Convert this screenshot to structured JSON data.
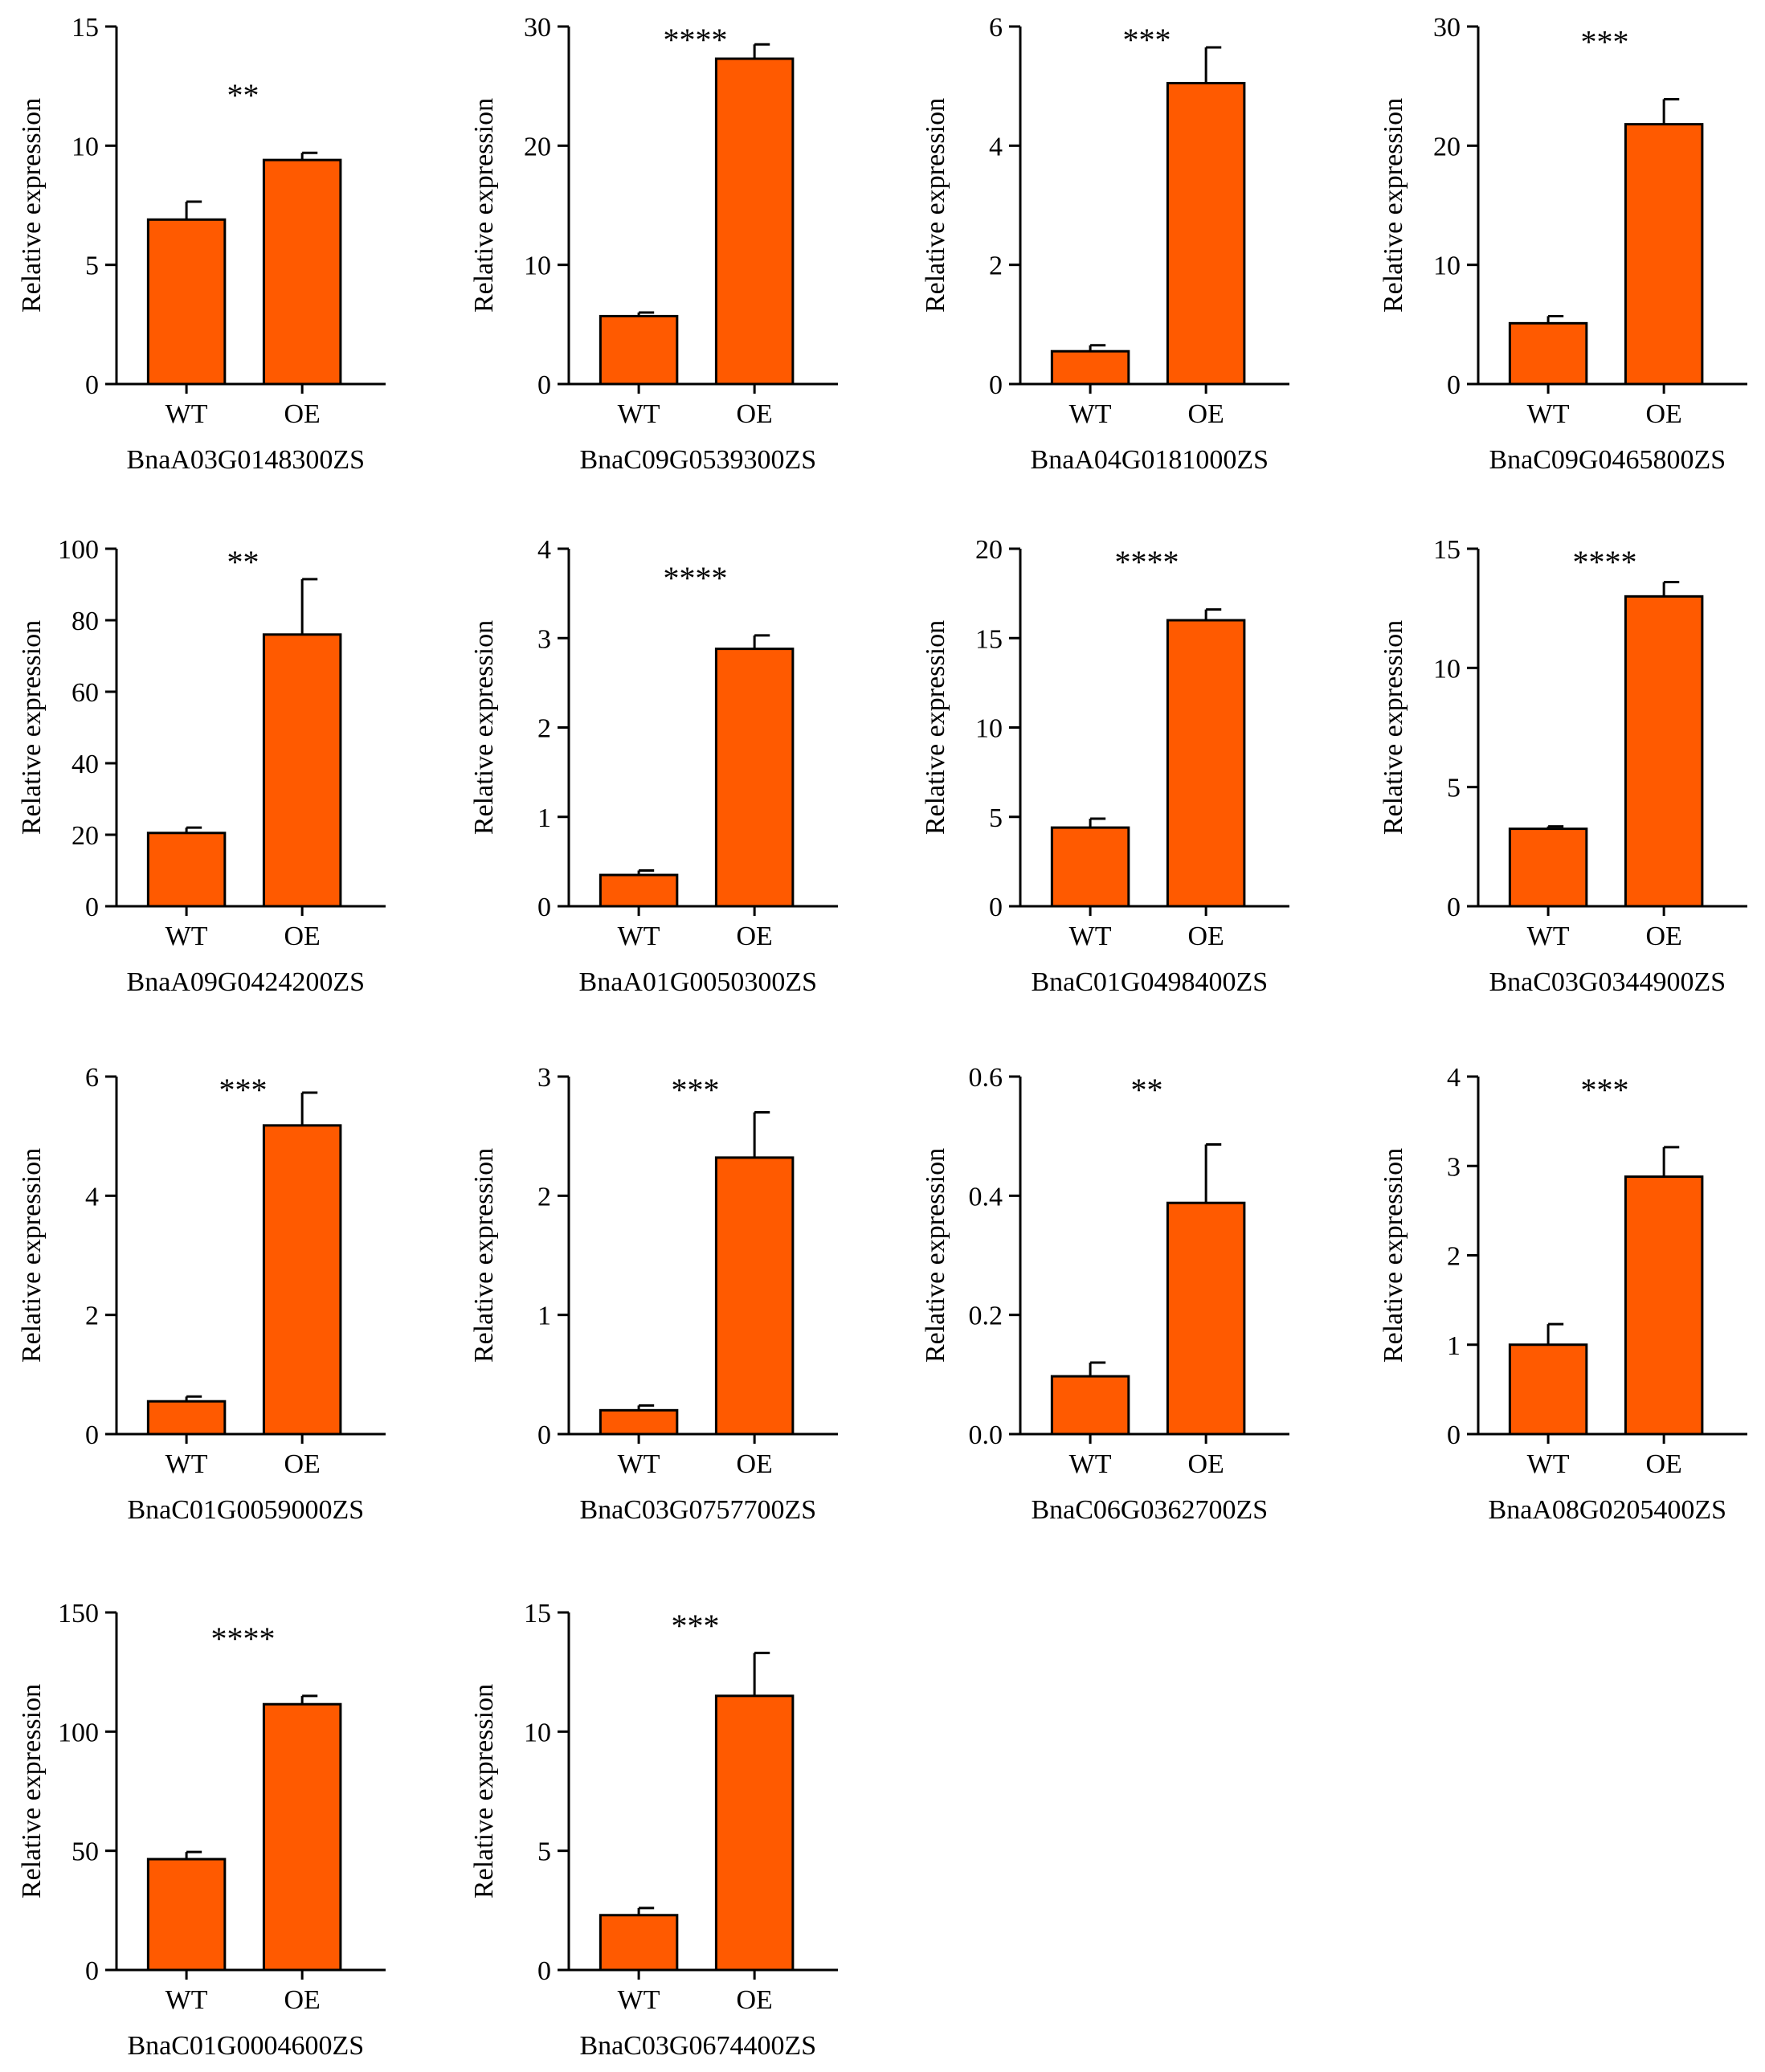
{
  "figure": {
    "bar_color": "#FF5A00",
    "axis_color": "#000000",
    "ylabel": "Relative expression"
  },
  "chart_data": [
    {
      "type": "bar",
      "title": "BnaA03G0148300ZS",
      "xlabel": "BnaA03G0148300ZS",
      "ylabel": "Relative expression",
      "categories": [
        "WT",
        "OE"
      ],
      "values": [
        6.9,
        9.4
      ],
      "errors": [
        0.75,
        0.3
      ],
      "ylim": [
        0,
        15
      ],
      "yticks": [
        "0",
        "5",
        "10",
        "15"
      ],
      "significance": "**"
    },
    {
      "type": "bar",
      "title": "BnaC09G0539300ZS",
      "xlabel": "BnaC09G0539300ZS",
      "ylabel": "Relative expression",
      "categories": [
        "WT",
        "OE"
      ],
      "values": [
        5.7,
        27.3
      ],
      "errors": [
        0.3,
        1.2
      ],
      "ylim": [
        0,
        30
      ],
      "yticks": [
        "0",
        "10",
        "20",
        "30"
      ],
      "significance": "****"
    },
    {
      "type": "bar",
      "title": "BnaA04G0181000ZS",
      "xlabel": "BnaA04G0181000ZS",
      "ylabel": "Relative expression",
      "categories": [
        "WT",
        "OE"
      ],
      "values": [
        0.55,
        5.05
      ],
      "errors": [
        0.1,
        0.6
      ],
      "ylim": [
        0,
        6
      ],
      "yticks": [
        "0",
        "2",
        "4",
        "6"
      ],
      "significance": "***"
    },
    {
      "type": "bar",
      "title": "BnaC09G0465800ZS",
      "xlabel": "BnaC09G0465800ZS",
      "ylabel": "Relative expression",
      "categories": [
        "WT",
        "OE"
      ],
      "values": [
        5.1,
        21.8
      ],
      "errors": [
        0.6,
        2.1
      ],
      "ylim": [
        0,
        30
      ],
      "yticks": [
        "0",
        "10",
        "20",
        "30"
      ],
      "significance": "***"
    },
    {
      "type": "bar",
      "title": "BnaA09G0424200ZS",
      "xlabel": "BnaA09G0424200ZS",
      "ylabel": "Relative expression",
      "categories": [
        "WT",
        "OE"
      ],
      "values": [
        20.5,
        76
      ],
      "errors": [
        1.5,
        15.5
      ],
      "ylim": [
        0,
        100
      ],
      "yticks": [
        "0",
        "20",
        "40",
        "60",
        "80",
        "100"
      ],
      "significance": "**"
    },
    {
      "type": "bar",
      "title": "BnaA01G0050300ZS",
      "xlabel": "BnaA01G0050300ZS",
      "ylabel": "Relative expression",
      "categories": [
        "WT",
        "OE"
      ],
      "values": [
        0.35,
        2.88
      ],
      "errors": [
        0.05,
        0.15
      ],
      "ylim": [
        0,
        4
      ],
      "yticks": [
        "0",
        "1",
        "2",
        "3",
        "4"
      ],
      "significance": "****"
    },
    {
      "type": "bar",
      "title": "BnaC01G0498400ZS",
      "xlabel": "BnaC01G0498400ZS",
      "ylabel": "Relative expression",
      "categories": [
        "WT",
        "OE"
      ],
      "values": [
        4.4,
        16
      ],
      "errors": [
        0.5,
        0.6
      ],
      "ylim": [
        0,
        20
      ],
      "yticks": [
        "0",
        "5",
        "10",
        "15",
        "20"
      ],
      "significance": "****"
    },
    {
      "type": "bar",
      "title": "BnaC03G0344900ZS",
      "xlabel": "BnaC03G0344900ZS",
      "ylabel": "Relative expression",
      "categories": [
        "WT",
        "OE"
      ],
      "values": [
        3.25,
        13
      ],
      "errors": [
        0.1,
        0.6
      ],
      "ylim": [
        0,
        15
      ],
      "yticks": [
        "0",
        "5",
        "10",
        "15"
      ],
      "significance": "****"
    },
    {
      "type": "bar",
      "title": "BnaC01G0059000ZS",
      "xlabel": "BnaC01G0059000ZS",
      "ylabel": "Relative expression",
      "categories": [
        "WT",
        "OE"
      ],
      "values": [
        0.55,
        5.18
      ],
      "errors": [
        0.08,
        0.55
      ],
      "ylim": [
        0,
        6
      ],
      "yticks": [
        "0",
        "2",
        "4",
        "6"
      ],
      "significance": "***"
    },
    {
      "type": "bar",
      "title": "BnaC03G0757700ZS",
      "xlabel": "BnaC03G0757700ZS",
      "ylabel": "Relative expression",
      "categories": [
        "WT",
        "OE"
      ],
      "values": [
        0.2,
        2.32
      ],
      "errors": [
        0.04,
        0.38
      ],
      "ylim": [
        0,
        3
      ],
      "yticks": [
        "0",
        "1",
        "2",
        "3"
      ],
      "significance": "***"
    },
    {
      "type": "bar",
      "title": "BnaC06G0362700ZS",
      "xlabel": "BnaC06G0362700ZS",
      "ylabel": "Relative expression",
      "categories": [
        "WT",
        "OE"
      ],
      "values": [
        0.097,
        0.388
      ],
      "errors": [
        0.023,
        0.098
      ],
      "ylim": [
        0,
        0.6
      ],
      "yticks": [
        "0.0",
        "0.2",
        "0.4",
        "0.6"
      ],
      "significance": "**"
    },
    {
      "type": "bar",
      "title": "BnaA08G0205400ZS",
      "xlabel": "BnaA08G0205400ZS",
      "ylabel": "Relative expression",
      "categories": [
        "WT",
        "OE"
      ],
      "values": [
        1.0,
        2.88
      ],
      "errors": [
        0.23,
        0.33
      ],
      "ylim": [
        0,
        4
      ],
      "yticks": [
        "0",
        "1",
        "2",
        "3",
        "4"
      ],
      "significance": "***"
    },
    {
      "type": "bar",
      "title": "BnaC01G0004600ZS",
      "xlabel": "BnaC01G0004600ZS",
      "ylabel": "Relative expression",
      "categories": [
        "WT",
        "OE"
      ],
      "values": [
        46.5,
        111.5
      ],
      "errors": [
        3,
        3.5
      ],
      "ylim": [
        0,
        150
      ],
      "yticks": [
        "0",
        "50",
        "100",
        "150"
      ],
      "significance": "****"
    },
    {
      "type": "bar",
      "title": "BnaC03G0674400ZS",
      "xlabel": "BnaC03G0674400ZS",
      "ylabel": "Relative expression",
      "categories": [
        "WT",
        "OE"
      ],
      "values": [
        2.3,
        11.5
      ],
      "errors": [
        0.3,
        1.8
      ],
      "ylim": [
        0,
        15
      ],
      "yticks": [
        "0",
        "5",
        "10",
        "15"
      ],
      "significance": "***"
    }
  ]
}
